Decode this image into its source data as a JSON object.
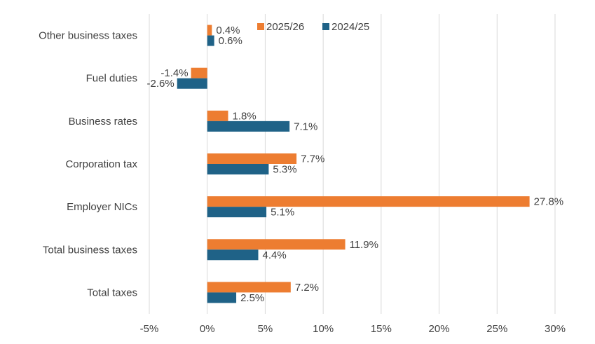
{
  "chart_data": {
    "type": "bar",
    "orientation": "horizontal",
    "categories": [
      "Other business taxes",
      "Fuel duties",
      "Business rates",
      "Corporation tax",
      "Employer NICs",
      "Total business taxes",
      "Total taxes"
    ],
    "series": [
      {
        "name": "2025/26",
        "color": "#ED7D31",
        "values": [
          0.4,
          -1.4,
          1.8,
          7.7,
          27.8,
          11.9,
          7.2
        ]
      },
      {
        "name": "2024/25",
        "color": "#1F6287",
        "values": [
          0.6,
          -2.6,
          7.1,
          5.3,
          5.1,
          4.4,
          2.5
        ]
      }
    ],
    "xlim": [
      -5,
      30
    ],
    "xticks": [
      -5,
      0,
      5,
      10,
      15,
      20,
      25,
      30
    ],
    "tick_suffix": "%",
    "data_label_suffix": "%",
    "grid": "vertical",
    "legend": "top-center"
  }
}
